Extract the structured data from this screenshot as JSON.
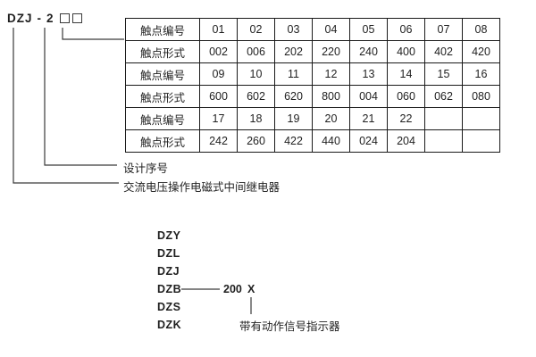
{
  "model": {
    "prefix": "DZJ",
    "separator": "-",
    "design_number": "2"
  },
  "table": {
    "rows": [
      {
        "header": "触点编号",
        "cells": [
          "01",
          "02",
          "03",
          "04",
          "05",
          "06",
          "07",
          "08"
        ]
      },
      {
        "header": "触点形式",
        "cells": [
          "002",
          "006",
          "202",
          "220",
          "240",
          "400",
          "402",
          "420"
        ]
      },
      {
        "header": "触点编号",
        "cells": [
          "09",
          "10",
          "11",
          "12",
          "13",
          "14",
          "15",
          "16"
        ]
      },
      {
        "header": "触点形式",
        "cells": [
          "600",
          "602",
          "620",
          "800",
          "004",
          "060",
          "062",
          "080"
        ]
      },
      {
        "header": "触点编号",
        "cells": [
          "17",
          "18",
          "19",
          "20",
          "21",
          "22",
          "",
          ""
        ]
      },
      {
        "header": "触点形式",
        "cells": [
          "242",
          "260",
          "422",
          "440",
          "024",
          "204",
          "",
          ""
        ]
      }
    ]
  },
  "callouts": {
    "design_serial": "设计序号",
    "relay_description": "交流电压操作电磁式中间继电器"
  },
  "series_list": {
    "items": [
      "DZY",
      "DZL",
      "DZJ",
      "DZB",
      "DZS",
      "DZK"
    ],
    "dzb_value": "200",
    "dzb_suffix": "X",
    "indicator_note": "带有动作信号指示器"
  },
  "colors": {
    "background": "#ffffff",
    "text": "#1f1f1f",
    "line": "#3a3a3a",
    "table_border": "#1a1a1a"
  }
}
